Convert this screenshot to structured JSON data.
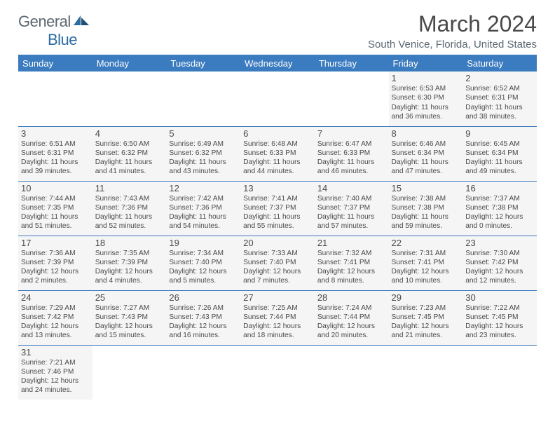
{
  "brand": {
    "part1": "General",
    "part2": "Blue"
  },
  "title": "March 2024",
  "location": "South Venice, Florida, United States",
  "weekdays": [
    "Sunday",
    "Monday",
    "Tuesday",
    "Wednesday",
    "Thursday",
    "Friday",
    "Saturday"
  ],
  "colors": {
    "header_bg": "#3b7bbf",
    "cell_bg": "#f5f5f5",
    "text": "#4a4a4a"
  },
  "weeks": [
    [
      null,
      null,
      null,
      null,
      null,
      {
        "n": "1",
        "sr": "Sunrise: 6:53 AM",
        "ss": "Sunset: 6:30 PM",
        "d1": "Daylight: 11 hours",
        "d2": "and 36 minutes."
      },
      {
        "n": "2",
        "sr": "Sunrise: 6:52 AM",
        "ss": "Sunset: 6:31 PM",
        "d1": "Daylight: 11 hours",
        "d2": "and 38 minutes."
      }
    ],
    [
      {
        "n": "3",
        "sr": "Sunrise: 6:51 AM",
        "ss": "Sunset: 6:31 PM",
        "d1": "Daylight: 11 hours",
        "d2": "and 39 minutes."
      },
      {
        "n": "4",
        "sr": "Sunrise: 6:50 AM",
        "ss": "Sunset: 6:32 PM",
        "d1": "Daylight: 11 hours",
        "d2": "and 41 minutes."
      },
      {
        "n": "5",
        "sr": "Sunrise: 6:49 AM",
        "ss": "Sunset: 6:32 PM",
        "d1": "Daylight: 11 hours",
        "d2": "and 43 minutes."
      },
      {
        "n": "6",
        "sr": "Sunrise: 6:48 AM",
        "ss": "Sunset: 6:33 PM",
        "d1": "Daylight: 11 hours",
        "d2": "and 44 minutes."
      },
      {
        "n": "7",
        "sr": "Sunrise: 6:47 AM",
        "ss": "Sunset: 6:33 PM",
        "d1": "Daylight: 11 hours",
        "d2": "and 46 minutes."
      },
      {
        "n": "8",
        "sr": "Sunrise: 6:46 AM",
        "ss": "Sunset: 6:34 PM",
        "d1": "Daylight: 11 hours",
        "d2": "and 47 minutes."
      },
      {
        "n": "9",
        "sr": "Sunrise: 6:45 AM",
        "ss": "Sunset: 6:34 PM",
        "d1": "Daylight: 11 hours",
        "d2": "and 49 minutes."
      }
    ],
    [
      {
        "n": "10",
        "sr": "Sunrise: 7:44 AM",
        "ss": "Sunset: 7:35 PM",
        "d1": "Daylight: 11 hours",
        "d2": "and 51 minutes."
      },
      {
        "n": "11",
        "sr": "Sunrise: 7:43 AM",
        "ss": "Sunset: 7:36 PM",
        "d1": "Daylight: 11 hours",
        "d2": "and 52 minutes."
      },
      {
        "n": "12",
        "sr": "Sunrise: 7:42 AM",
        "ss": "Sunset: 7:36 PM",
        "d1": "Daylight: 11 hours",
        "d2": "and 54 minutes."
      },
      {
        "n": "13",
        "sr": "Sunrise: 7:41 AM",
        "ss": "Sunset: 7:37 PM",
        "d1": "Daylight: 11 hours",
        "d2": "and 55 minutes."
      },
      {
        "n": "14",
        "sr": "Sunrise: 7:40 AM",
        "ss": "Sunset: 7:37 PM",
        "d1": "Daylight: 11 hours",
        "d2": "and 57 minutes."
      },
      {
        "n": "15",
        "sr": "Sunrise: 7:38 AM",
        "ss": "Sunset: 7:38 PM",
        "d1": "Daylight: 11 hours",
        "d2": "and 59 minutes."
      },
      {
        "n": "16",
        "sr": "Sunrise: 7:37 AM",
        "ss": "Sunset: 7:38 PM",
        "d1": "Daylight: 12 hours",
        "d2": "and 0 minutes."
      }
    ],
    [
      {
        "n": "17",
        "sr": "Sunrise: 7:36 AM",
        "ss": "Sunset: 7:39 PM",
        "d1": "Daylight: 12 hours",
        "d2": "and 2 minutes."
      },
      {
        "n": "18",
        "sr": "Sunrise: 7:35 AM",
        "ss": "Sunset: 7:39 PM",
        "d1": "Daylight: 12 hours",
        "d2": "and 4 minutes."
      },
      {
        "n": "19",
        "sr": "Sunrise: 7:34 AM",
        "ss": "Sunset: 7:40 PM",
        "d1": "Daylight: 12 hours",
        "d2": "and 5 minutes."
      },
      {
        "n": "20",
        "sr": "Sunrise: 7:33 AM",
        "ss": "Sunset: 7:40 PM",
        "d1": "Daylight: 12 hours",
        "d2": "and 7 minutes."
      },
      {
        "n": "21",
        "sr": "Sunrise: 7:32 AM",
        "ss": "Sunset: 7:41 PM",
        "d1": "Daylight: 12 hours",
        "d2": "and 8 minutes."
      },
      {
        "n": "22",
        "sr": "Sunrise: 7:31 AM",
        "ss": "Sunset: 7:41 PM",
        "d1": "Daylight: 12 hours",
        "d2": "and 10 minutes."
      },
      {
        "n": "23",
        "sr": "Sunrise: 7:30 AM",
        "ss": "Sunset: 7:42 PM",
        "d1": "Daylight: 12 hours",
        "d2": "and 12 minutes."
      }
    ],
    [
      {
        "n": "24",
        "sr": "Sunrise: 7:29 AM",
        "ss": "Sunset: 7:42 PM",
        "d1": "Daylight: 12 hours",
        "d2": "and 13 minutes."
      },
      {
        "n": "25",
        "sr": "Sunrise: 7:27 AM",
        "ss": "Sunset: 7:43 PM",
        "d1": "Daylight: 12 hours",
        "d2": "and 15 minutes."
      },
      {
        "n": "26",
        "sr": "Sunrise: 7:26 AM",
        "ss": "Sunset: 7:43 PM",
        "d1": "Daylight: 12 hours",
        "d2": "and 16 minutes."
      },
      {
        "n": "27",
        "sr": "Sunrise: 7:25 AM",
        "ss": "Sunset: 7:44 PM",
        "d1": "Daylight: 12 hours",
        "d2": "and 18 minutes."
      },
      {
        "n": "28",
        "sr": "Sunrise: 7:24 AM",
        "ss": "Sunset: 7:44 PM",
        "d1": "Daylight: 12 hours",
        "d2": "and 20 minutes."
      },
      {
        "n": "29",
        "sr": "Sunrise: 7:23 AM",
        "ss": "Sunset: 7:45 PM",
        "d1": "Daylight: 12 hours",
        "d2": "and 21 minutes."
      },
      {
        "n": "30",
        "sr": "Sunrise: 7:22 AM",
        "ss": "Sunset: 7:45 PM",
        "d1": "Daylight: 12 hours",
        "d2": "and 23 minutes."
      }
    ],
    [
      {
        "n": "31",
        "sr": "Sunrise: 7:21 AM",
        "ss": "Sunset: 7:46 PM",
        "d1": "Daylight: 12 hours",
        "d2": "and 24 minutes."
      },
      null,
      null,
      null,
      null,
      null,
      null
    ]
  ]
}
